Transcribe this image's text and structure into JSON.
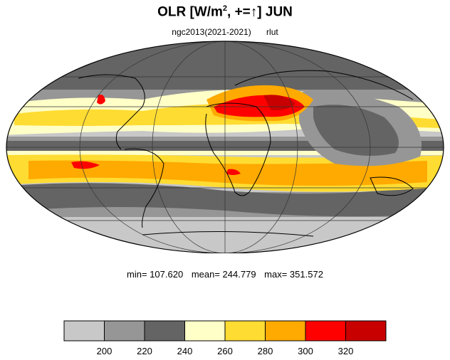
{
  "title": {
    "main": "OLR [W/m",
    "sup": "2",
    "rest": ", +=↑] JUN"
  },
  "subtitle": {
    "case": "ngc2013(2021-2021)",
    "variable": "rlut"
  },
  "stats": {
    "min": "min= 107.620",
    "mean": "mean= 244.779",
    "max": "max= 351.572"
  },
  "colorbar": {
    "colors": [
      "#c8c8c8",
      "#969696",
      "#646464",
      "#ffffc8",
      "#ffdc32",
      "#ffaa00",
      "#ff0000",
      "#c80000"
    ],
    "ticks": [
      "200",
      "220",
      "240",
      "260",
      "280",
      "300",
      "320"
    ]
  },
  "map": {
    "projection": "mollweide",
    "field": "OLR"
  }
}
